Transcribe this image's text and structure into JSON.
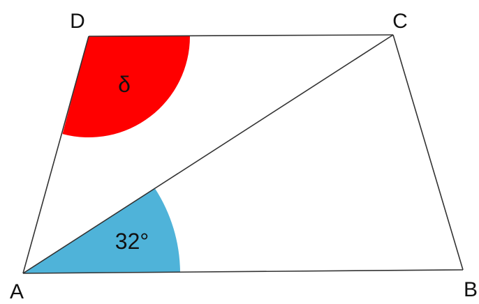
{
  "diagram": {
    "vertices": {
      "a": "A",
      "b": "B",
      "c": "C",
      "d": "D"
    },
    "angles": {
      "cab": {
        "label": "32°",
        "color": "#4fb3d9"
      },
      "adc": {
        "label": "δ",
        "color": "#ff0000"
      }
    },
    "colors": {
      "stroke": "#333333",
      "background": "#ffffff"
    }
  }
}
